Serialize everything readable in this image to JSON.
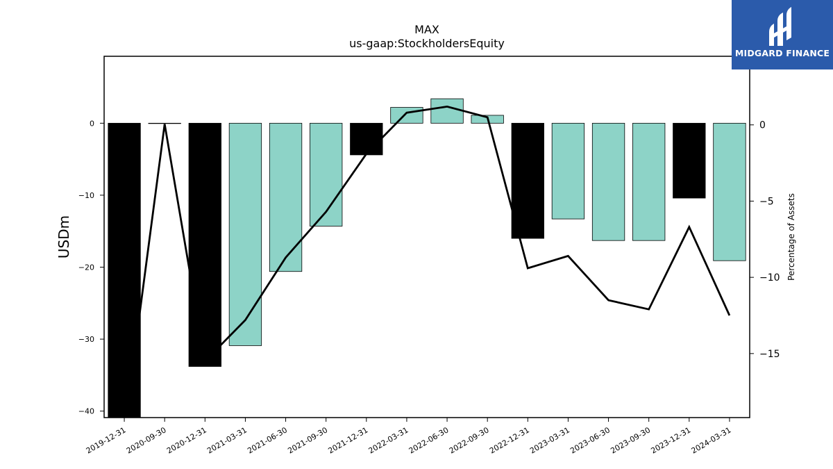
{
  "chart_data": {
    "type": "bar",
    "title": "MAX",
    "subtitle": "us-gaap:StockholdersEquity",
    "ylabel": "USDm",
    "y2label": "Percentage of Assets",
    "categories": [
      "2019-12-31",
      "2020-09-30",
      "2020-12-31",
      "2021-03-31",
      "2021-06-30",
      "2021-09-30",
      "2021-12-31",
      "2022-03-31",
      "2022-06-30",
      "2022-09-30",
      "2022-12-31",
      "2023-03-31",
      "2023-06-30",
      "2023-09-30",
      "2023-12-31",
      "2024-03-31"
    ],
    "values": [
      -41,
      0,
      -33.8,
      -30.9,
      -20.6,
      -14.3,
      -4.4,
      2.2,
      3.4,
      1.1,
      -16.0,
      -13.3,
      -16.3,
      -16.3,
      -10.4,
      -19.1
    ],
    "bar_colors": [
      "#000000",
      "#000000",
      "#000000",
      "#8dd3c7",
      "#8dd3c7",
      "#8dd3c7",
      "#000000",
      "#8dd3c7",
      "#8dd3c7",
      "#8dd3c7",
      "#000000",
      "#8dd3c7",
      "#8dd3c7",
      "#8dd3c7",
      "#000000",
      "#8dd3c7"
    ],
    "line_values": [
      -20,
      0.05,
      -15.5,
      -12.8,
      -8.7,
      -5.7,
      -1.9,
      0.8,
      1.2,
      0.5,
      -9.4,
      -8.6,
      -11.5,
      -12.1,
      -6.7,
      -12.5
    ],
    "ylim": [
      -40.9,
      9.3
    ],
    "y2lim": [
      -19.2,
      4.5
    ],
    "yticks": [
      0,
      -10,
      -20,
      -30,
      -40
    ],
    "y2ticks": [
      0,
      -5,
      -10,
      -15
    ],
    "colors": {
      "accent": "#8dd3c7",
      "dark": "#000000"
    },
    "grid": false
  },
  "logo": {
    "text": "MIDGARD FINANCE",
    "background": "#2b5bab"
  }
}
